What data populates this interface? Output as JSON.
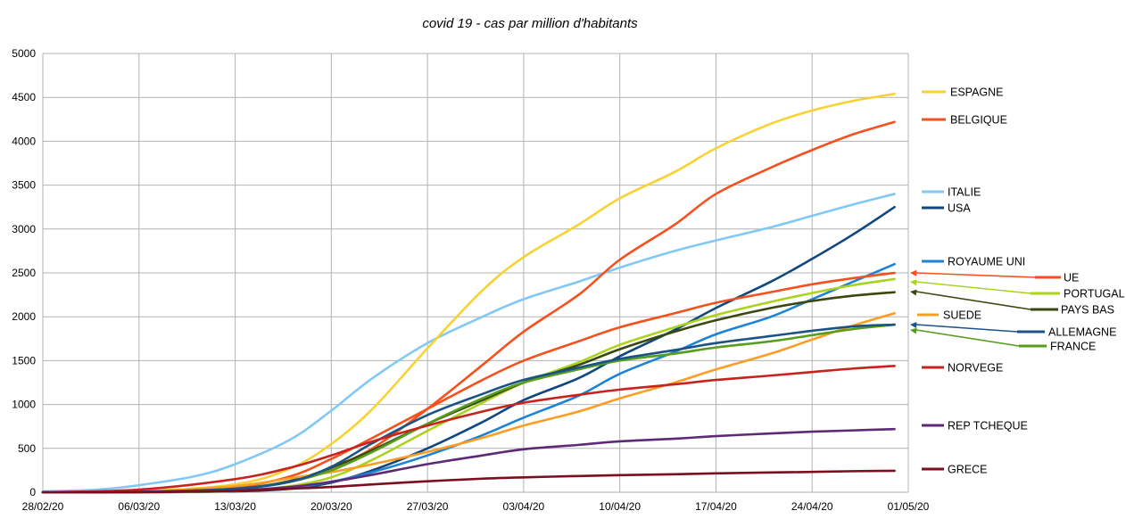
{
  "chart_data": {
    "type": "line",
    "title": "covid 19 - cas par million d'habitants",
    "xlabel": "",
    "ylabel": "",
    "x_ticks": [
      "28/02/20",
      "06/03/20",
      "13/03/20",
      "20/03/20",
      "27/03/20",
      "03/04/20",
      "10/04/20",
      "17/04/20",
      "24/04/20",
      "01/05/20"
    ],
    "x_range_days": [
      0,
      63
    ],
    "ylim": [
      0,
      5000
    ],
    "y_ticks": [
      0,
      500,
      1000,
      1500,
      2000,
      2500,
      3000,
      3500,
      4000,
      4500,
      5000
    ],
    "grid": true,
    "legend": "right",
    "series": [
      {
        "name": "ESPAGNE",
        "color": "#f8d232",
        "x": [
          0,
          7,
          14,
          18,
          21,
          24,
          28,
          32,
          35,
          39,
          42,
          46,
          49,
          53,
          56,
          59,
          62
        ],
        "values": [
          0,
          10,
          90,
          270,
          550,
          950,
          1640,
          2300,
          2680,
          3050,
          3350,
          3650,
          3920,
          4200,
          4350,
          4460,
          4540
        ]
      },
      {
        "name": "BELGIQUE",
        "color": "#f4511e",
        "x": [
          0,
          7,
          14,
          18,
          21,
          24,
          28,
          32,
          35,
          39,
          42,
          46,
          49,
          53,
          56,
          59,
          62
        ],
        "values": [
          0,
          5,
          40,
          120,
          280,
          500,
          950,
          1450,
          1830,
          2250,
          2650,
          3050,
          3400,
          3700,
          3900,
          4080,
          4220
        ]
      },
      {
        "name": "ITALIE",
        "color": "#82c8f4",
        "x": [
          0,
          4,
          7,
          11,
          14,
          18,
          21,
          24,
          28,
          32,
          35,
          39,
          42,
          46,
          49,
          53,
          56,
          59,
          62
        ],
        "values": [
          10,
          30,
          80,
          180,
          320,
          600,
          930,
          1300,
          1700,
          2000,
          2200,
          2400,
          2560,
          2750,
          2870,
          3020,
          3150,
          3280,
          3400
        ]
      },
      {
        "name": "USA",
        "color": "#10477f",
        "x": [
          0,
          7,
          14,
          18,
          21,
          24,
          28,
          32,
          35,
          39,
          42,
          46,
          49,
          53,
          56,
          59,
          62
        ],
        "values": [
          0,
          0,
          10,
          40,
          110,
          250,
          500,
          800,
          1050,
          1300,
          1550,
          1850,
          2100,
          2400,
          2660,
          2940,
          3250
        ]
      },
      {
        "name": "ROYAUME UNI",
        "color": "#1c83d6",
        "x": [
          0,
          7,
          14,
          18,
          21,
          24,
          28,
          32,
          35,
          39,
          42,
          46,
          49,
          53,
          56,
          59,
          62
        ],
        "values": [
          0,
          2,
          15,
          50,
          120,
          230,
          420,
          650,
          850,
          1100,
          1350,
          1600,
          1800,
          2000,
          2200,
          2400,
          2600
        ]
      },
      {
        "name": "UE",
        "color": "#f4511e",
        "x": [
          0,
          7,
          14,
          18,
          21,
          24,
          28,
          32,
          35,
          39,
          42,
          46,
          49,
          53,
          56,
          59,
          62
        ],
        "values": [
          0,
          5,
          60,
          180,
          380,
          620,
          950,
          1280,
          1500,
          1720,
          1880,
          2040,
          2160,
          2280,
          2370,
          2440,
          2500
        ]
      },
      {
        "name": "PORTUGAL",
        "color": "#aad21e",
        "x": [
          0,
          7,
          14,
          18,
          21,
          24,
          28,
          32,
          35,
          39,
          42,
          46,
          49,
          53,
          56,
          59,
          62
        ],
        "values": [
          0,
          0,
          15,
          70,
          170,
          370,
          700,
          1020,
          1250,
          1480,
          1680,
          1880,
          2020,
          2170,
          2270,
          2360,
          2430
        ]
      },
      {
        "name": "PAYS BAS",
        "color": "#3a4810",
        "x": [
          0,
          7,
          14,
          18,
          21,
          24,
          28,
          32,
          35,
          39,
          42,
          46,
          49,
          53,
          56,
          59,
          62
        ],
        "values": [
          0,
          5,
          40,
          130,
          280,
          480,
          780,
          1050,
          1250,
          1450,
          1630,
          1830,
          1960,
          2100,
          2180,
          2240,
          2280
        ]
      },
      {
        "name": "SUEDE",
        "color": "#ff9c24",
        "x": [
          0,
          7,
          14,
          18,
          21,
          24,
          28,
          32,
          35,
          39,
          42,
          46,
          49,
          53,
          56,
          59,
          62
        ],
        "values": [
          0,
          5,
          70,
          160,
          230,
          320,
          460,
          620,
          760,
          920,
          1070,
          1250,
          1400,
          1580,
          1740,
          1900,
          2040
        ]
      },
      {
        "name": "ALLEMAGNE",
        "color": "#1b5386",
        "x": [
          0,
          7,
          14,
          18,
          21,
          24,
          28,
          32,
          35,
          39,
          42,
          46,
          49,
          53,
          56,
          59,
          62
        ],
        "values": [
          0,
          5,
          40,
          120,
          290,
          560,
          880,
          1120,
          1280,
          1420,
          1520,
          1620,
          1700,
          1780,
          1840,
          1890,
          1910
        ]
      },
      {
        "name": "FRANCE",
        "color": "#579d1c",
        "x": [
          0,
          7,
          14,
          18,
          21,
          24,
          28,
          32,
          35,
          39,
          42,
          46,
          49,
          53,
          56,
          59,
          62
        ],
        "values": [
          0,
          5,
          40,
          120,
          250,
          460,
          780,
          1070,
          1250,
          1400,
          1500,
          1580,
          1650,
          1720,
          1790,
          1860,
          1910
        ]
      },
      {
        "name": "NORVEGE",
        "color": "#c9211e",
        "x": [
          0,
          7,
          14,
          18,
          21,
          24,
          28,
          32,
          35,
          39,
          42,
          46,
          49,
          53,
          56,
          59,
          62
        ],
        "values": [
          0,
          30,
          150,
          280,
          420,
          580,
          760,
          920,
          1020,
          1110,
          1170,
          1230,
          1280,
          1330,
          1370,
          1410,
          1440
        ]
      },
      {
        "name": "REP TCHEQUE",
        "color": "#5e2a75",
        "x": [
          0,
          7,
          14,
          18,
          21,
          24,
          28,
          32,
          35,
          39,
          42,
          46,
          49,
          53,
          56,
          59,
          62
        ],
        "values": [
          0,
          2,
          20,
          60,
          120,
          200,
          320,
          420,
          490,
          540,
          580,
          610,
          640,
          670,
          690,
          705,
          720
        ]
      },
      {
        "name": "GRECE",
        "color": "#7b0f1e",
        "x": [
          0,
          7,
          14,
          18,
          21,
          24,
          28,
          32,
          35,
          39,
          42,
          46,
          49,
          53,
          56,
          59,
          62
        ],
        "values": [
          0,
          1,
          15,
          40,
          60,
          90,
          125,
          155,
          170,
          185,
          195,
          205,
          215,
          225,
          232,
          240,
          245
        ]
      }
    ]
  }
}
